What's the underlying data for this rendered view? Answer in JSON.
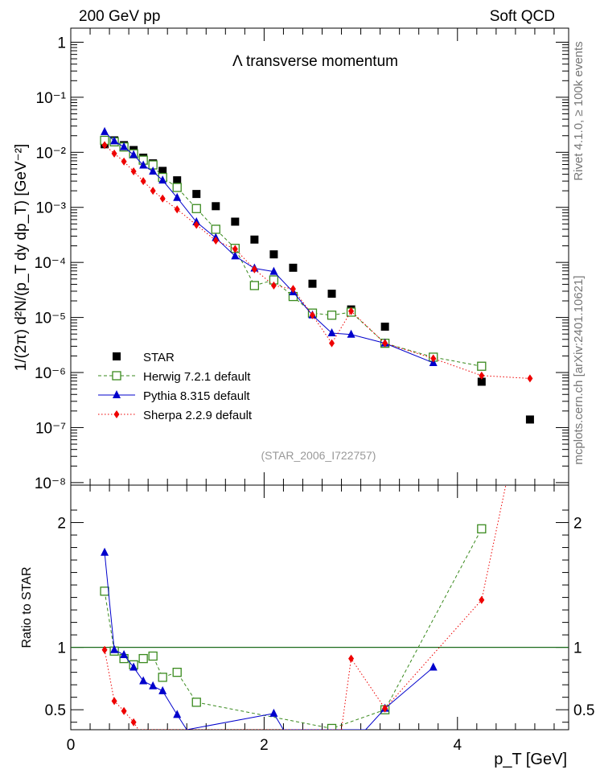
{
  "header": {
    "left": "200 GeV pp",
    "right": "Soft QCD"
  },
  "side_label": {
    "rivet": "Rivet 4.1.0, ≥ 100k events",
    "mcplots": "mcplots.cern.ch [arXiv:2401.10621]"
  },
  "chart_data": [
    {
      "type": "scatter",
      "panel": "main",
      "title": "Λ transverse momentum",
      "watermark": "(STAR_2006_I722757)",
      "ylabel": "1/(2π)  d²N/(p_T dy dp_T) [GeV⁻²]",
      "yscale": "log",
      "xlim": [
        0,
        5.15
      ],
      "ylim": [
        9e-09,
        1.8
      ],
      "y_tick_labels": [
        "1",
        "10⁻¹",
        "10⁻²",
        "10⁻³",
        "10⁻⁴",
        "10⁻⁵",
        "10⁻⁶",
        "10⁻⁷",
        "10⁻⁸"
      ],
      "legend_position": "bottom-left",
      "series": [
        {
          "name": "STAR",
          "color": "#000000",
          "marker": "square",
          "x": [
            0.35,
            0.45,
            0.55,
            0.65,
            0.75,
            0.85,
            0.95,
            1.1,
            1.3,
            1.5,
            1.7,
            1.9,
            2.1,
            2.3,
            2.5,
            2.7,
            2.9,
            3.25,
            3.75,
            4.25,
            4.75
          ],
          "y": [
            0.014,
            0.0165,
            0.0135,
            0.011,
            0.008,
            0.0063,
            0.0046,
            0.0031,
            0.00175,
            0.00105,
            0.00055,
            0.00026,
            0.00014,
            8e-05,
            4.1e-05,
            2.7e-05,
            1.4e-05,
            6.8e-06,
            1.9e-06,
            6.8e-07,
            1.4e-07
          ]
        },
        {
          "name": "Herwig 7.2.1 default",
          "color": "#3a8a1e",
          "marker": "open-square",
          "line": "dashed",
          "x": [
            0.35,
            0.45,
            0.55,
            0.65,
            0.75,
            0.85,
            0.95,
            1.1,
            1.3,
            1.5,
            1.7,
            1.9,
            2.1,
            2.3,
            2.5,
            2.7,
            2.9,
            3.25,
            3.75,
            4.25
          ],
          "y": [
            0.0165,
            0.0155,
            0.0125,
            0.0094,
            0.0072,
            0.0059,
            0.0035,
            0.0023,
            0.00095,
            0.0004,
            0.00018,
            3.8e-05,
            4.8e-05,
            2.4e-05,
            1.2e-05,
            1.1e-05,
            1.25e-05,
            3.4e-06,
            1.9e-06,
            1.3e-06
          ]
        },
        {
          "name": "Pythia 8.315 default",
          "color": "#0000cc",
          "marker": "triangle",
          "line": "solid",
          "x": [
            0.35,
            0.45,
            0.55,
            0.65,
            0.75,
            0.85,
            0.95,
            1.1,
            1.3,
            1.5,
            1.7,
            1.9,
            2.1,
            2.3,
            2.5,
            2.7,
            2.9,
            3.25,
            3.75
          ],
          "y": [
            0.0235,
            0.016,
            0.0125,
            0.009,
            0.0058,
            0.0045,
            0.0031,
            0.0015,
            0.00054,
            0.00028,
            0.00013,
            7.8e-05,
            6.8e-05,
            2.9e-05,
            1.1e-05,
            5.2e-06,
            4.9e-06,
            3.4e-06,
            1.5e-06
          ]
        },
        {
          "name": "Sherpa 2.2.9 default",
          "color": "#ee0000",
          "marker": "diamond",
          "line": "dotted",
          "x": [
            0.35,
            0.45,
            0.55,
            0.65,
            0.75,
            0.85,
            0.95,
            1.1,
            1.3,
            1.5,
            1.7,
            1.9,
            2.1,
            2.3,
            2.5,
            2.7,
            2.9,
            3.25,
            3.75,
            4.25,
            4.75
          ],
          "y": [
            0.0135,
            0.0095,
            0.0068,
            0.0045,
            0.003,
            0.002,
            0.00145,
            0.00092,
            0.00048,
            0.00025,
            0.000175,
            7.5e-05,
            3.8e-05,
            3.3e-05,
            1.1e-05,
            3.4e-06,
            1.3e-05,
            3.4e-06,
            1.8e-06,
            8.8e-07,
            7.8e-07
          ]
        }
      ]
    },
    {
      "type": "line",
      "panel": "ratio",
      "ylabel": "Ratio to STAR",
      "xlabel": "p_T [GeV]",
      "xlim": [
        0,
        5.15
      ],
      "ylim": [
        0.34,
        2.3
      ],
      "x_ticks": [
        0,
        2,
        4
      ],
      "y_ticks": [
        0.5,
        1,
        2
      ],
      "reference_line": 1,
      "series": [
        {
          "name": "Herwig 7.2.1 default",
          "color": "#3a8a1e",
          "marker": "open-square",
          "line": "dashed",
          "x": [
            0.35,
            0.45,
            0.55,
            0.65,
            0.75,
            0.85,
            0.95,
            1.1,
            1.3,
            2.7,
            3.25,
            4.25
          ],
          "y": [
            1.45,
            0.97,
            0.91,
            0.86,
            0.91,
            0.93,
            0.76,
            0.8,
            0.56,
            0.35,
            0.5,
            1.95
          ]
        },
        {
          "name": "Pythia 8.315 default",
          "color": "#0000cc",
          "marker": "triangle",
          "line": "solid",
          "x": [
            0.35,
            0.45,
            0.55,
            0.65,
            0.75,
            0.85,
            0.95,
            1.1,
            1.2,
            2.1,
            2.2,
            3.05,
            3.25,
            3.75
          ],
          "y": [
            1.76,
            0.98,
            0.94,
            0.84,
            0.73,
            0.69,
            0.65,
            0.46,
            0.34,
            0.47,
            0.34,
            0.34,
            0.51,
            0.84
          ]
        },
        {
          "name": "Sherpa 2.2.9 default",
          "color": "#ee0000",
          "marker": "diamond",
          "line": "dotted",
          "x": [
            0.35,
            0.45,
            0.55,
            0.65,
            0.7,
            2.8,
            2.9,
            3.25,
            4.25,
            4.5
          ],
          "y": [
            0.98,
            0.57,
            0.49,
            0.4,
            0.34,
            0.34,
            0.91,
            0.51,
            1.38,
            2.3
          ]
        }
      ]
    }
  ]
}
